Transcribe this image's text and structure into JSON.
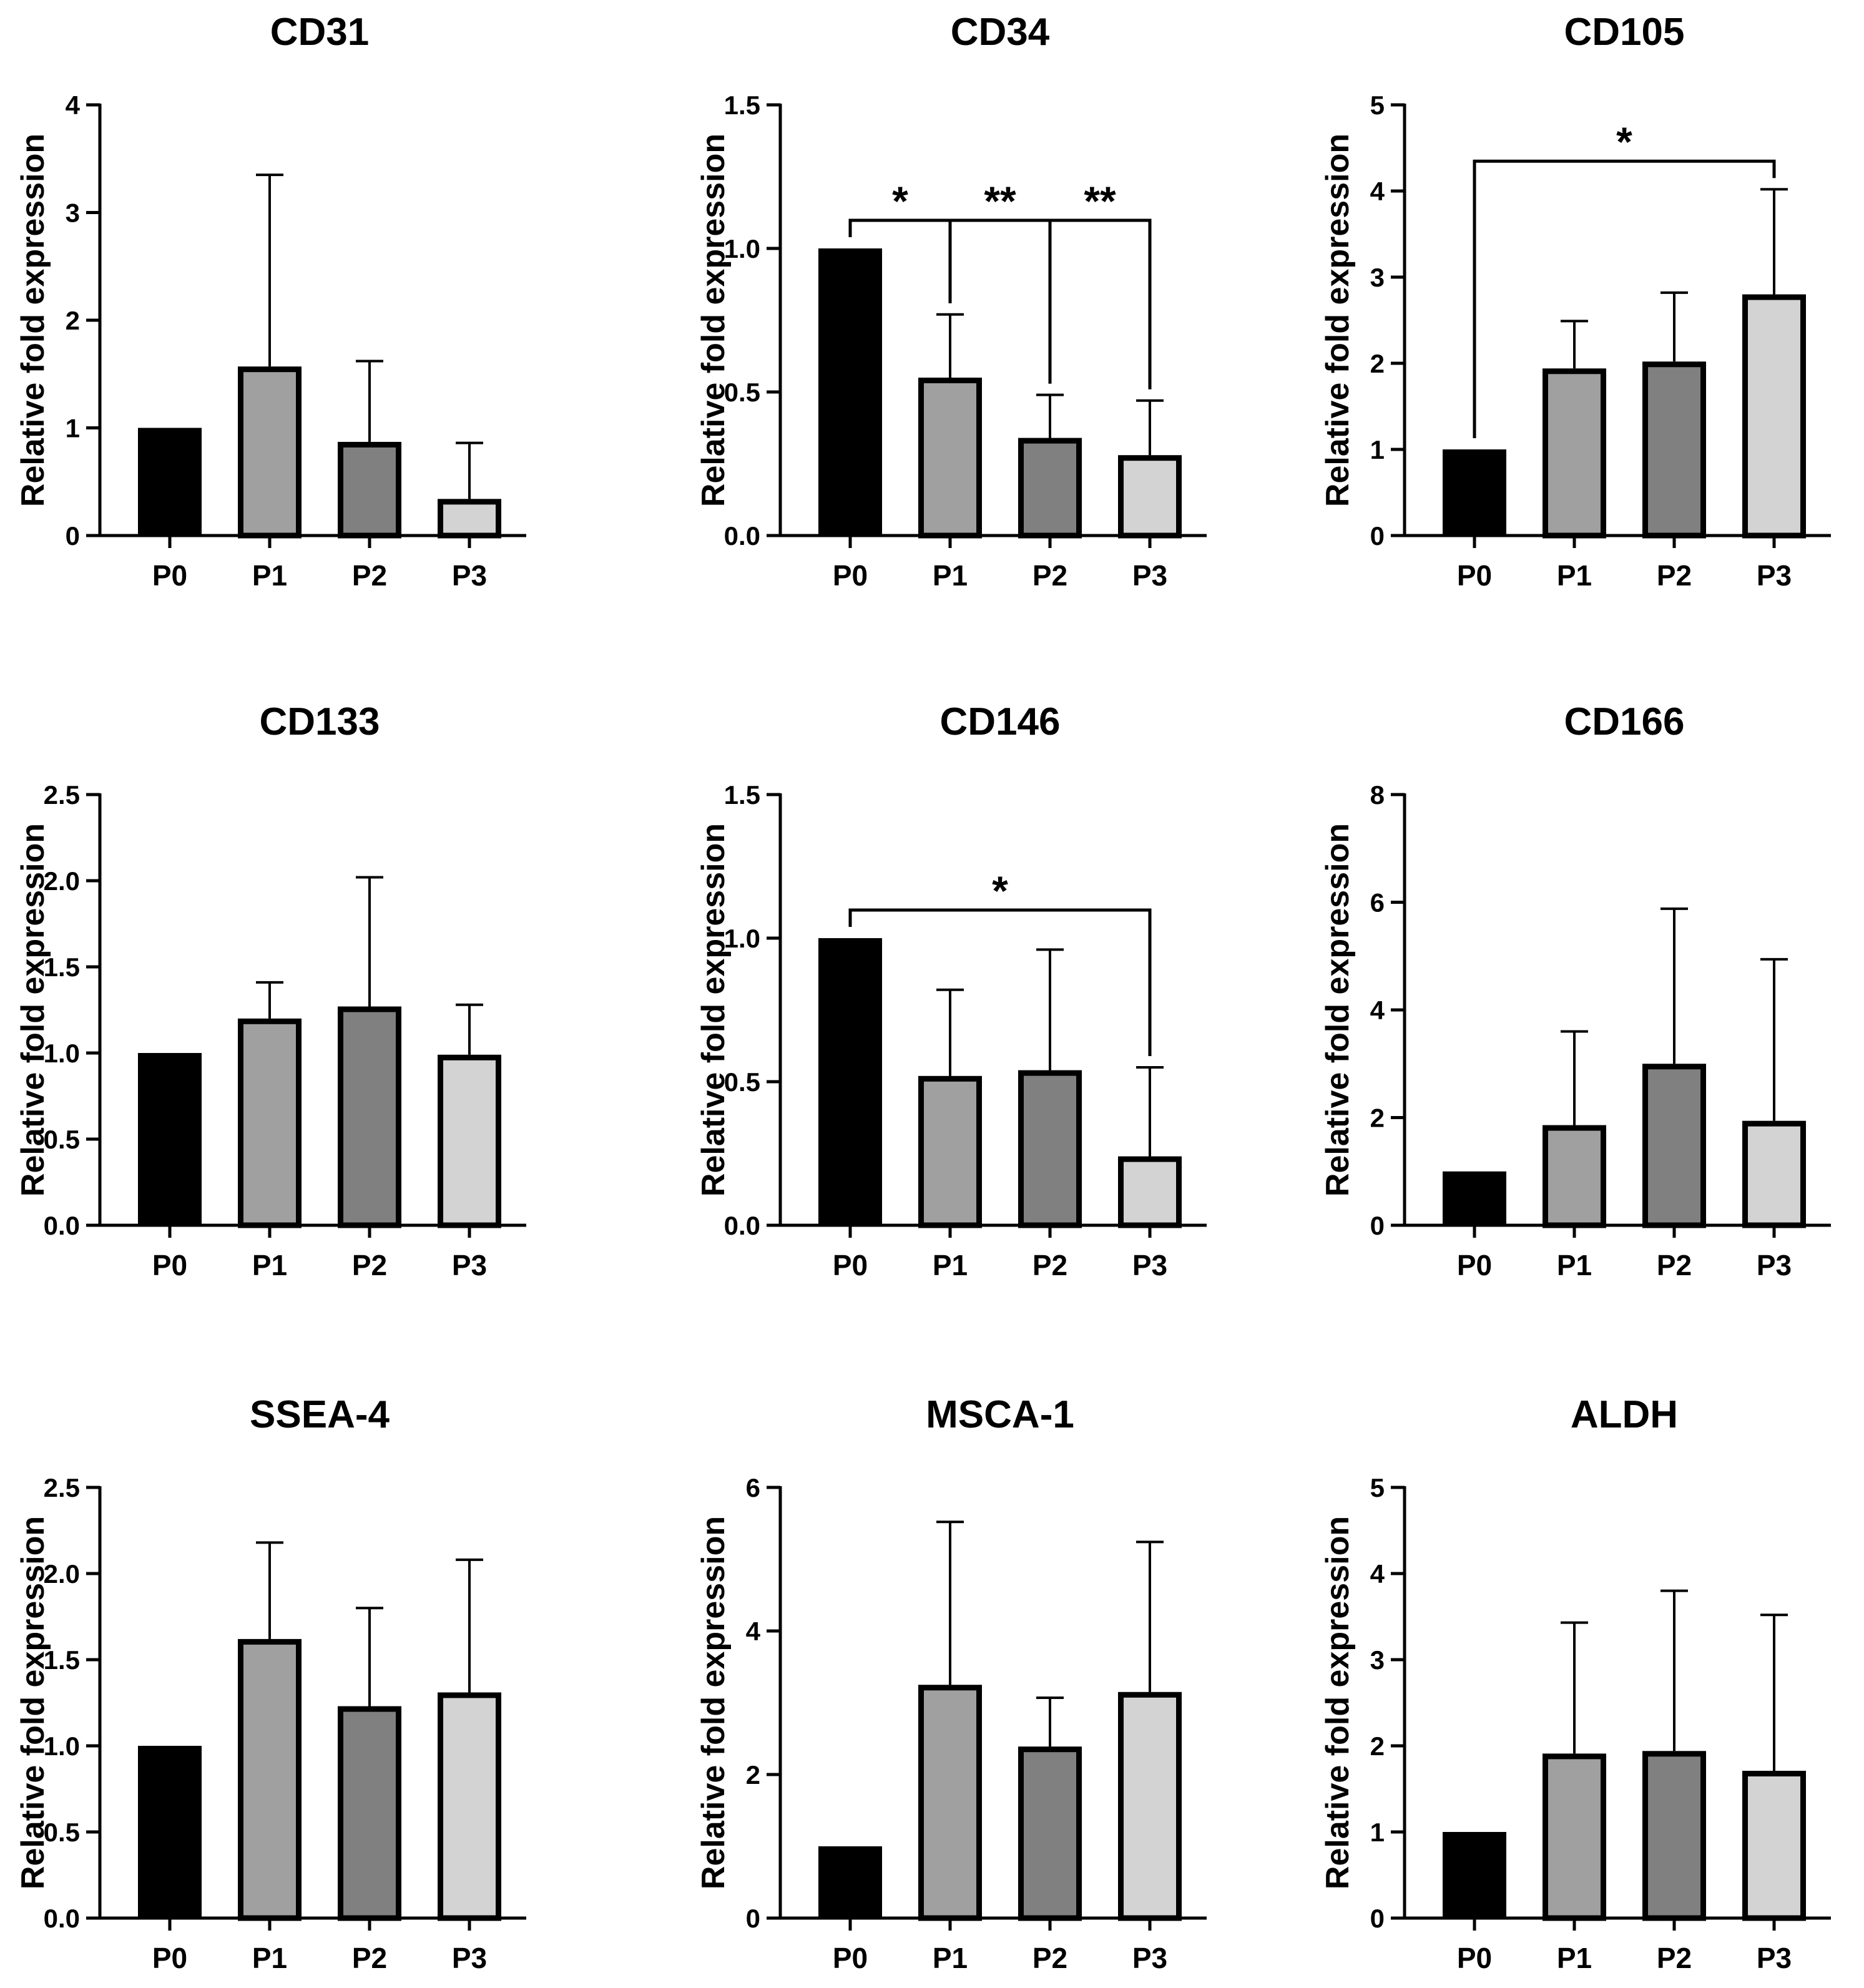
{
  "figure": {
    "colors": {
      "P0": "#000000",
      "P1": "#a0a0a0",
      "P2": "#808080",
      "P3": "#d3d3d3",
      "axis": "#000000"
    }
  },
  "chart_data": [
    {
      "type": "bar",
      "title": "CD31",
      "ylabel": "Relative fold expression",
      "categories": [
        "P0",
        "P1",
        "P2",
        "P3"
      ],
      "values": [
        1.0,
        1.57,
        0.87,
        0.34
      ],
      "errors": [
        0,
        1.78,
        0.75,
        0.52
      ],
      "ylim": [
        0,
        4
      ],
      "yticks": [
        0,
        1,
        2,
        3,
        4
      ],
      "tick_labels": [
        "0",
        "1",
        "2",
        "3",
        "4"
      ],
      "significance": []
    },
    {
      "type": "bar",
      "title": "CD34",
      "ylabel": "Relative fold expression",
      "categories": [
        "P0",
        "P1",
        "P2",
        "P3"
      ],
      "values": [
        1.0,
        0.55,
        0.34,
        0.28
      ],
      "errors": [
        0,
        0.22,
        0.15,
        0.19
      ],
      "ylim": [
        0,
        1.5
      ],
      "yticks": [
        0,
        0.5,
        1.0,
        1.5
      ],
      "tick_labels": [
        "0.0",
        "0.5",
        "1.0",
        "1.5"
      ],
      "significance": [
        {
          "from": 0,
          "to": 1,
          "label": "*"
        },
        {
          "from": 1,
          "to": 2,
          "label": "**"
        },
        {
          "from": 2,
          "to": 3,
          "label": "**"
        }
      ]
    },
    {
      "type": "bar",
      "title": "CD105",
      "ylabel": "Relative fold expression",
      "categories": [
        "P0",
        "P1",
        "P2",
        "P3"
      ],
      "values": [
        1.0,
        1.94,
        2.02,
        2.8
      ],
      "errors": [
        0,
        0.55,
        0.8,
        1.22
      ],
      "ylim": [
        0,
        5
      ],
      "yticks": [
        0,
        1,
        2,
        3,
        4,
        5
      ],
      "tick_labels": [
        "0",
        "1",
        "2",
        "3",
        "4",
        "5"
      ],
      "significance": [
        {
          "from": 0,
          "to": 3,
          "label": "*"
        }
      ]
    },
    {
      "type": "bar",
      "title": "CD133",
      "ylabel": "Relative fold expression",
      "categories": [
        "P0",
        "P1",
        "P2",
        "P3"
      ],
      "values": [
        1.0,
        1.2,
        1.27,
        0.99
      ],
      "errors": [
        0,
        0.21,
        0.75,
        0.29
      ],
      "ylim": [
        0,
        2.5
      ],
      "yticks": [
        0,
        0.5,
        1.0,
        1.5,
        2.0,
        2.5
      ],
      "tick_labels": [
        "0.0",
        "0.5",
        "1.0",
        "1.5",
        "2.0",
        "2.5"
      ],
      "significance": []
    },
    {
      "type": "bar",
      "title": "CD146",
      "ylabel": "Relative fold expression",
      "categories": [
        "P0",
        "P1",
        "P2",
        "P3"
      ],
      "values": [
        1.0,
        0.52,
        0.54,
        0.24
      ],
      "errors": [
        0,
        0.3,
        0.42,
        0.31
      ],
      "ylim": [
        0,
        1.5
      ],
      "yticks": [
        0,
        0.5,
        1.0,
        1.5
      ],
      "tick_labels": [
        "0.0",
        "0.5",
        "1.0",
        "1.5"
      ],
      "significance": [
        {
          "from": 0,
          "to": 3,
          "label": "*"
        }
      ]
    },
    {
      "type": "bar",
      "title": "CD166",
      "ylabel": "Relative fold expression",
      "categories": [
        "P0",
        "P1",
        "P2",
        "P3"
      ],
      "values": [
        1.0,
        1.86,
        3.0,
        1.94
      ],
      "errors": [
        0,
        1.74,
        2.88,
        3.0
      ],
      "ylim": [
        0,
        8
      ],
      "yticks": [
        0,
        2,
        4,
        6,
        8
      ],
      "tick_labels": [
        "0",
        "2",
        "4",
        "6",
        "8"
      ],
      "significance": []
    },
    {
      "type": "bar",
      "title": "SSEA-4",
      "ylabel": "Relative fold expression",
      "categories": [
        "P0",
        "P1",
        "P2",
        "P3"
      ],
      "values": [
        1.0,
        1.62,
        1.23,
        1.31
      ],
      "errors": [
        0,
        0.56,
        0.57,
        0.77
      ],
      "ylim": [
        0,
        2.5
      ],
      "yticks": [
        0,
        0.5,
        1.0,
        1.5,
        2.0,
        2.5
      ],
      "tick_labels": [
        "0.0",
        "0.5",
        "1.0",
        "1.5",
        "2.0",
        "2.5"
      ],
      "significance": []
    },
    {
      "type": "bar",
      "title": "MSCA-1",
      "ylabel": "Relative fold expression",
      "categories": [
        "P0",
        "P1",
        "P2",
        "P3"
      ],
      "values": [
        1.0,
        3.25,
        2.39,
        3.15
      ],
      "errors": [
        0,
        2.27,
        0.68,
        2.09
      ],
      "ylim": [
        0,
        6
      ],
      "yticks": [
        0,
        2,
        4,
        6
      ],
      "tick_labels": [
        "0",
        "2",
        "4",
        "6"
      ],
      "significance": []
    },
    {
      "type": "bar",
      "title": "ALDH",
      "ylabel": "Relative fold expression",
      "categories": [
        "P0",
        "P1",
        "P2",
        "P3"
      ],
      "values": [
        1.0,
        1.91,
        1.94,
        1.71
      ],
      "errors": [
        0,
        1.52,
        1.86,
        1.81
      ],
      "ylim": [
        0,
        5
      ],
      "yticks": [
        0,
        1,
        2,
        3,
        4,
        5
      ],
      "tick_labels": [
        "0",
        "1",
        "2",
        "3",
        "4",
        "5"
      ],
      "significance": []
    }
  ]
}
